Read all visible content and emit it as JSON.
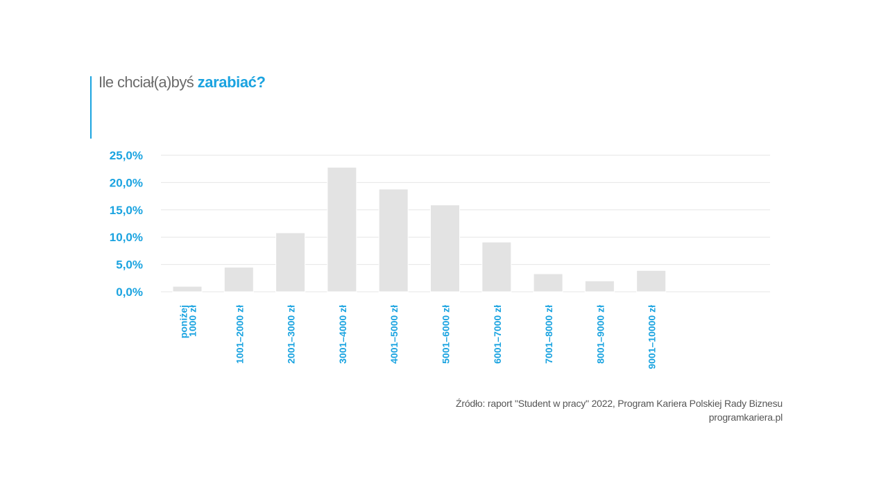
{
  "title": {
    "text_regular": "Ile chciał(a)byś ",
    "text_highlight": "zarabiać?"
  },
  "colors": {
    "accent": "#1aa3e0",
    "bar": "#e3e3e3",
    "grid": "#e6e6e6",
    "text": "#6b6b6b"
  },
  "chart_data": {
    "type": "bar",
    "categories": [
      [
        "poniżej",
        "1000 zł"
      ],
      [
        "1001–2000 zł"
      ],
      [
        "2001–3000 zł"
      ],
      [
        "3001–4000 zł"
      ],
      [
        "4001–5000 zł"
      ],
      [
        "5001–6000 zł"
      ],
      [
        "6001–7000 zł"
      ],
      [
        "7001–8000 zł"
      ],
      [
        "8001–9000 zł"
      ],
      [
        "9001–10000 zł"
      ]
    ],
    "values": [
      1.0,
      4.5,
      10.8,
      22.8,
      18.8,
      15.9,
      9.1,
      3.3,
      2.0,
      3.9
    ],
    "yticks": [
      "0,0%",
      "5,0%",
      "10,0%",
      "15,0%",
      "20,0%",
      "25,0%"
    ],
    "ytick_values": [
      0,
      5,
      10,
      15,
      20,
      25
    ],
    "ylim": [
      0,
      25
    ],
    "xlabel": "",
    "ylabel": "",
    "grid": true
  },
  "source": {
    "line1": "Źródło: raport \"Student w pracy\" 2022, Program Kariera Polskiej Rady Biznesu",
    "line2": "programkariera.pl"
  }
}
